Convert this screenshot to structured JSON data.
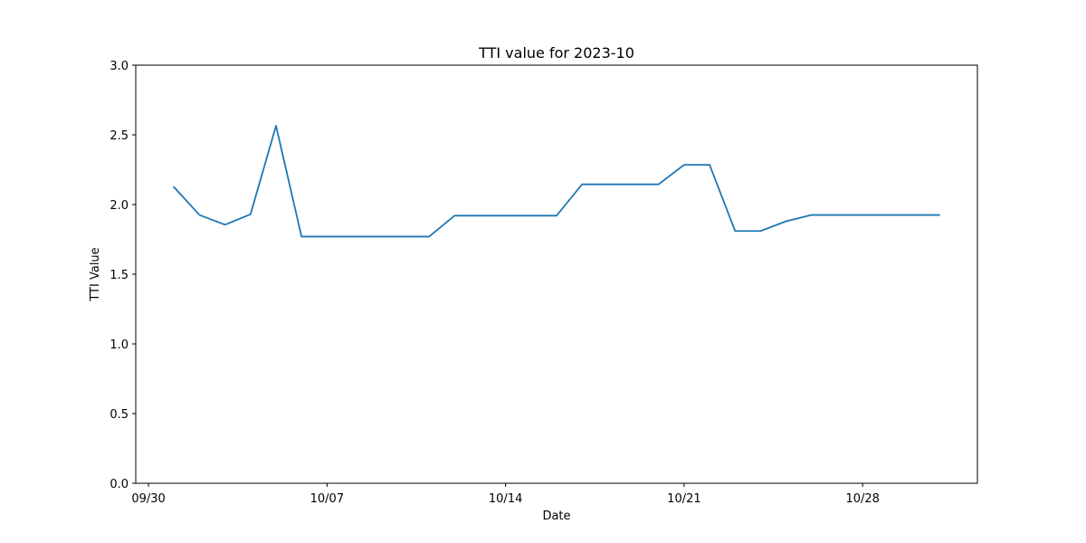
{
  "chart_data": {
    "type": "line",
    "title": "TTI value for 2023-10",
    "xlabel": "Date",
    "ylabel": "TTI Value",
    "xlim": [
      "2023-09-29 12:00",
      "2023-11-01 12:00"
    ],
    "ylim": [
      0,
      3
    ],
    "x_ticks": [
      {
        "date": "2023-09-30",
        "label": "09/30"
      },
      {
        "date": "2023-10-07",
        "label": "10/07"
      },
      {
        "date": "2023-10-14",
        "label": "10/14"
      },
      {
        "date": "2023-10-21",
        "label": "10/21"
      },
      {
        "date": "2023-10-28",
        "label": "10/28"
      }
    ],
    "y_ticks": [
      "0.0",
      "0.5",
      "1.0",
      "1.5",
      "2.0",
      "2.5",
      "3.0"
    ],
    "grid": false,
    "series": [
      {
        "color": "#1f77b4",
        "x": [
          "2023-10-01",
          "2023-10-02",
          "2023-10-03",
          "2023-10-04",
          "2023-10-05",
          "2023-10-06",
          "2023-10-07",
          "2023-10-08",
          "2023-10-09",
          "2023-10-10",
          "2023-10-11",
          "2023-10-12",
          "2023-10-13",
          "2023-10-14",
          "2023-10-15",
          "2023-10-16",
          "2023-10-17",
          "2023-10-18",
          "2023-10-19",
          "2023-10-20",
          "2023-10-21",
          "2023-10-22",
          "2023-10-23",
          "2023-10-24",
          "2023-10-25",
          "2023-10-26",
          "2023-10-27",
          "2023-10-28",
          "2023-10-29",
          "2023-10-30",
          "2023-10-31"
        ],
        "values": [
          2.125,
          1.925,
          1.855,
          1.93,
          2.565,
          1.77,
          1.77,
          1.77,
          1.77,
          1.77,
          1.77,
          1.92,
          1.92,
          1.92,
          1.92,
          1.92,
          2.145,
          2.145,
          2.145,
          2.145,
          2.285,
          2.285,
          1.81,
          1.81,
          1.88,
          1.925,
          1.925,
          1.925,
          1.925,
          1.925,
          1.925
        ]
      }
    ]
  }
}
